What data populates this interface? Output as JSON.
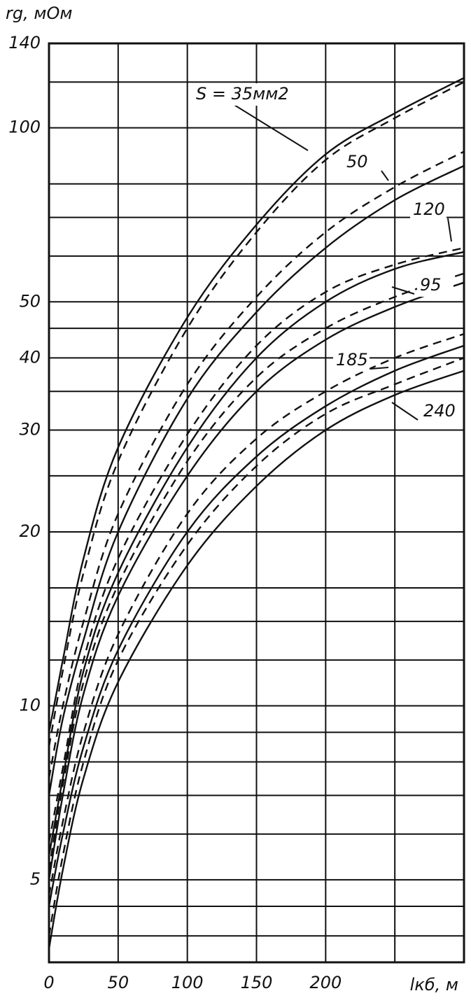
{
  "chart_data": {
    "type": "line",
    "y_label": "rg, мОм",
    "x_label": "lкб, м",
    "y_log": true,
    "grid": true,
    "xlim": [
      0,
      300
    ],
    "xticks": [
      0,
      50,
      100,
      150,
      200
    ],
    "x_minor_ticks": [
      250,
      300
    ],
    "ylim": [
      3.6,
      140
    ],
    "yticks": [
      5,
      10,
      20,
      30,
      40,
      50,
      100,
      140
    ],
    "y_minor_ticks": [
      4,
      4.5,
      6,
      7,
      8,
      9,
      12,
      14,
      16,
      25,
      35,
      45,
      60,
      70,
      80,
      120
    ],
    "x": [
      0,
      10,
      25,
      50,
      100,
      150,
      200,
      250,
      300
    ],
    "series": [
      {
        "name": "S = 35мм2",
        "color": "#111111",
        "values": [
          9,
          12,
          18,
          28,
          47,
          68,
          90,
          106,
          122
        ],
        "values_dashed": [
          8.5,
          11.5,
          17,
          26.5,
          45,
          66,
          88,
          104,
          120
        ]
      },
      {
        "name": "50",
        "color": "#111111",
        "values": [
          7,
          9.5,
          13,
          20,
          34,
          48,
          62,
          75,
          86
        ],
        "values_dashed": [
          7.5,
          10,
          14,
          21.5,
          36,
          51,
          66,
          79,
          91
        ]
      },
      {
        "name": "120",
        "color": "#111111",
        "values": [
          5.5,
          7.5,
          11.5,
          17,
          28,
          40,
          50,
          57,
          61
        ],
        "values_dashed": [
          5.8,
          7.8,
          12,
          18,
          29.5,
          42,
          52,
          58,
          62
        ]
      },
      {
        "name": "95",
        "color": "#111111",
        "values": [
          5,
          7,
          10.5,
          15.5,
          25,
          35,
          43,
          49,
          54
        ],
        "values_dashed": [
          5.2,
          7.3,
          11,
          16.2,
          26.5,
          37,
          45,
          51,
          56
        ]
      },
      {
        "name": "185",
        "color": "#111111",
        "values": [
          4.5,
          6,
          8.5,
          12.5,
          20,
          27,
          33,
          38,
          42
        ],
        "values_dashed": [
          4.7,
          6.3,
          9,
          13.3,
          21.5,
          29,
          35,
          40,
          44
        ]
      },
      {
        "name": "240",
        "color": "#111111",
        "values": [
          3.8,
          5.2,
          7.5,
          11,
          17.5,
          24,
          30,
          34.5,
          38
        ],
        "values_dashed": [
          4,
          5.5,
          8,
          12,
          19,
          26,
          32,
          36,
          40
        ]
      }
    ]
  }
}
